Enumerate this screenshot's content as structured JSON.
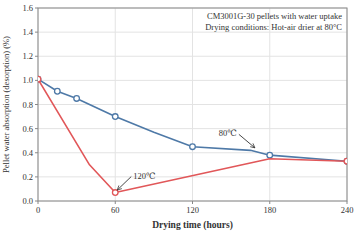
{
  "chart_data": {
    "type": "line",
    "title": "CM3001G-30 pellets with water uptake",
    "subtitle": "Drying conditions: Hot-air drier at 80°C",
    "x_label": "Drying time (hours)",
    "y_label": "Pellet water absorption (desorption) (%)",
    "xlim": [
      0,
      240
    ],
    "ylim": [
      0,
      1.6
    ],
    "xticks": [
      0,
      60,
      120,
      180,
      240
    ],
    "yticks": [
      {
        "value": 0,
        "label": "0.0"
      },
      0.2,
      0.4,
      0.6,
      0.8,
      {
        "value": 1.0,
        "label": "1.0"
      },
      1.2,
      1.4,
      1.6
    ],
    "grid": true,
    "series": [
      {
        "type": "line",
        "x": [
          0,
          15,
          30,
          60,
          90,
          120,
          165,
          180,
          240
        ],
        "values": [
          1.01,
          0.91,
          0.85,
          0.7,
          0.57,
          0.45,
          0.42,
          0.38,
          0.33
        ]
      },
      {
        "type": "scatter",
        "marker": "circle",
        "x": [
          0,
          15,
          30,
          60,
          120,
          180,
          240
        ],
        "values": [
          1.01,
          0.91,
          0.85,
          0.7,
          0.45,
          0.38,
          0.33
        ]
      },
      {
        "type": "line",
        "x": [
          0,
          40,
          60,
          180,
          240
        ],
        "values": [
          1.01,
          0.3,
          0.07,
          0.35,
          0.33
        ]
      },
      {
        "type": "scatter",
        "marker": "circle",
        "x": [
          0,
          60,
          240
        ],
        "values": [
          1.01,
          0.07,
          0.33
        ]
      }
    ],
    "annotations": [
      {
        "text": "80℃",
        "x": 170,
        "y": 0.42
      },
      {
        "text": "120℃",
        "x": 60,
        "y": 0.07
      }
    ]
  }
}
